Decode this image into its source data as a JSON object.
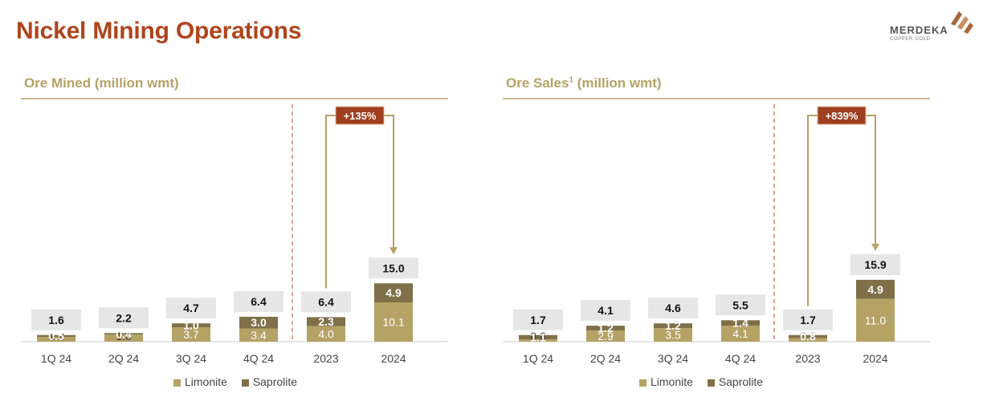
{
  "page": {
    "title": "Nickel Mining Operations"
  },
  "logo": {
    "name": "MERDEKA",
    "sub": "COPPER GOLD"
  },
  "colors": {
    "title": "#b0441b",
    "limonite": "#b5a265",
    "saprolite": "#7f7049",
    "callout": "#9e3f1f",
    "total_box": "#e6e6e6",
    "rule": "#c8b98c"
  },
  "chart_data": [
    {
      "type": "bar",
      "stacked": true,
      "title": "Ore Mined (million wmt)",
      "title_main": "Ore Mined",
      "title_sup": "",
      "title_unit": "(million wmt)",
      "categories": [
        "1Q 24",
        "2Q 24",
        "3Q 24",
        "4Q 24",
        "2023",
        "2024"
      ],
      "series": [
        {
          "name": "Limonite",
          "values": [
            1.2,
            1.8,
            3.7,
            3.4,
            4.0,
            10.1
          ]
        },
        {
          "name": "Saprolite",
          "values": [
            0.5,
            0.4,
            1.0,
            3.0,
            2.3,
            4.9
          ]
        }
      ],
      "totals": [
        1.6,
        2.2,
        4.7,
        6.4,
        6.4,
        15.0
      ],
      "series_labels": [
        [
          "1.2",
          "1.8",
          "3.7",
          "3.4",
          "4.0",
          "10.1"
        ],
        [
          "0.5",
          "0.4",
          "1.0",
          "3.0",
          "2.3",
          "4.9"
        ]
      ],
      "total_labels": [
        "1.6",
        "2.2",
        "4.7",
        "6.4",
        "6.4",
        "15.0"
      ],
      "callout": {
        "label": "+135%",
        "from": "2023",
        "to": "2024"
      },
      "divider_after": "4Q 24",
      "ylim": [
        0,
        16
      ]
    },
    {
      "type": "bar",
      "stacked": true,
      "title": "Ore Sales1 (million wmt)",
      "title_main": "Ore Sales",
      "title_sup": "1",
      "title_unit": "(million wmt)",
      "categories": [
        "1Q 24",
        "2Q 24",
        "3Q 24",
        "4Q 24",
        "2023",
        "2024"
      ],
      "series": [
        {
          "name": "Limonite",
          "values": [
            0.6,
            2.9,
            3.5,
            4.1,
            0.9,
            11.0
          ]
        },
        {
          "name": "Saprolite",
          "values": [
            1.1,
            1.2,
            1.2,
            1.4,
            0.8,
            4.9
          ]
        }
      ],
      "totals": [
        1.7,
        4.1,
        4.6,
        5.5,
        1.7,
        15.9
      ],
      "series_labels": [
        [
          "0.6",
          "2.9",
          "3.5",
          "4.1",
          "0.9",
          "11.0"
        ],
        [
          "1.1",
          "1.2",
          "1.2",
          "1.4",
          "0.8",
          "4.9"
        ]
      ],
      "total_labels": [
        "1.7",
        "4.1",
        "4.6",
        "5.5",
        "1.7",
        "15.9"
      ],
      "callout": {
        "label": "+839%",
        "from": "2023",
        "to": "2024"
      },
      "divider_after": "4Q 24",
      "ylim": [
        0,
        16
      ]
    }
  ],
  "legend": {
    "limonite": "Limonite",
    "saprolite": "Saprolite"
  }
}
